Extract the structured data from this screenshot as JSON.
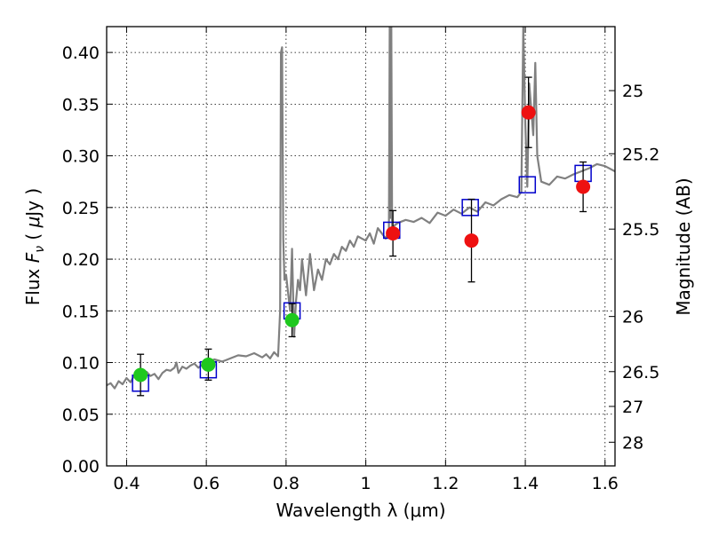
{
  "chart_data": {
    "type": "scatter",
    "xlabel": "Wavelength  λ (μm)",
    "ylabel": "Flux  F_ν  ( μJy )",
    "ylabel_parts": {
      "pre": "Flux  ",
      "sym": "F",
      "sub": "ν",
      "mid": "  ( ",
      "mu": "μ",
      "post": "Jy )"
    },
    "y2label": "Magnitude (AB)",
    "xlim": [
      0.35,
      1.625
    ],
    "ylim": [
      0.0,
      0.425
    ],
    "grid": true,
    "x_ticks": [
      0.4,
      0.6,
      0.8,
      1.0,
      1.2,
      1.4,
      1.6
    ],
    "x_tick_labels": [
      "0.4",
      "0.6",
      "0.8",
      "1",
      "1.2",
      "1.4",
      "1.6"
    ],
    "y_ticks": [
      0.0,
      0.05,
      0.1,
      0.15,
      0.2,
      0.25,
      0.3,
      0.35,
      0.4
    ],
    "y_tick_labels": [
      "0.00",
      "0.05",
      "0.10",
      "0.15",
      "0.20",
      "0.25",
      "0.30",
      "0.35",
      "0.40"
    ],
    "mag_ticks": [
      25,
      25.2,
      25.5,
      26,
      26.5,
      27,
      28
    ],
    "mag_tick_labels": [
      "25",
      "25.2",
      "25.5",
      "26",
      "26.5",
      "27",
      "28"
    ],
    "colors": {
      "spectrum": "#808080",
      "model": "#0000cc",
      "green": "#1ec81e",
      "red": "#ee1111",
      "errorbar": "#000000"
    },
    "series": [
      {
        "kind": "spectrum",
        "x": [
          0.35,
          0.36,
          0.37,
          0.38,
          0.39,
          0.4,
          0.41,
          0.42,
          0.43,
          0.44,
          0.45,
          0.46,
          0.47,
          0.48,
          0.49,
          0.5,
          0.51,
          0.52,
          0.525,
          0.53,
          0.54,
          0.55,
          0.56,
          0.57,
          0.58,
          0.59,
          0.6,
          0.62,
          0.64,
          0.66,
          0.68,
          0.7,
          0.72,
          0.74,
          0.75,
          0.76,
          0.77,
          0.78,
          0.785,
          0.787,
          0.79,
          0.793,
          0.796,
          0.8,
          0.81,
          0.815,
          0.82,
          0.825,
          0.83,
          0.835,
          0.84,
          0.85,
          0.86,
          0.87,
          0.88,
          0.89,
          0.9,
          0.91,
          0.92,
          0.93,
          0.94,
          0.95,
          0.96,
          0.97,
          0.98,
          0.99,
          1.0,
          1.01,
          1.02,
          1.03,
          1.04,
          1.05,
          1.058,
          1.06,
          1.062,
          1.064,
          1.066,
          1.07,
          1.08,
          1.1,
          1.12,
          1.14,
          1.16,
          1.18,
          1.2,
          1.22,
          1.24,
          1.26,
          1.28,
          1.3,
          1.32,
          1.34,
          1.36,
          1.38,
          1.39,
          1.395,
          1.4,
          1.405,
          1.41,
          1.42,
          1.425,
          1.43,
          1.44,
          1.46,
          1.48,
          1.5,
          1.52,
          1.54,
          1.56,
          1.58,
          1.6,
          1.625
        ],
        "y": [
          0.078,
          0.08,
          0.075,
          0.082,
          0.079,
          0.085,
          0.081,
          0.088,
          0.083,
          0.086,
          0.091,
          0.087,
          0.089,
          0.084,
          0.09,
          0.093,
          0.092,
          0.095,
          0.1,
          0.09,
          0.096,
          0.094,
          0.097,
          0.099,
          0.095,
          0.098,
          0.1,
          0.103,
          0.101,
          0.104,
          0.107,
          0.106,
          0.109,
          0.105,
          0.108,
          0.104,
          0.11,
          0.106,
          0.15,
          0.4,
          0.405,
          0.22,
          0.18,
          0.185,
          0.15,
          0.21,
          0.125,
          0.16,
          0.18,
          0.17,
          0.2,
          0.165,
          0.205,
          0.17,
          0.19,
          0.18,
          0.2,
          0.195,
          0.205,
          0.2,
          0.212,
          0.208,
          0.218,
          0.212,
          0.222,
          0.22,
          0.218,
          0.225,
          0.215,
          0.23,
          0.225,
          0.22,
          0.228,
          0.425,
          0.24,
          0.425,
          0.23,
          0.232,
          0.235,
          0.238,
          0.236,
          0.24,
          0.235,
          0.245,
          0.242,
          0.248,
          0.244,
          0.25,
          0.246,
          0.255,
          0.252,
          0.258,
          0.262,
          0.26,
          0.265,
          0.425,
          0.33,
          0.27,
          0.37,
          0.32,
          0.39,
          0.3,
          0.275,
          0.272,
          0.28,
          0.278,
          0.282,
          0.285,
          0.288,
          0.292,
          0.29,
          0.285
        ]
      },
      {
        "kind": "model",
        "marker": "square",
        "x": [
          0.435,
          0.605,
          0.815,
          1.065,
          1.262,
          1.405,
          1.545
        ],
        "values": [
          0.08,
          0.093,
          0.15,
          0.228,
          0.25,
          0.272,
          0.283
        ]
      },
      {
        "kind": "observed-green",
        "marker": "circle",
        "x": [
          0.435,
          0.605,
          0.815
        ],
        "values": [
          0.088,
          0.098,
          0.141
        ],
        "yerr": [
          0.02,
          0.015,
          0.016
        ]
      },
      {
        "kind": "observed-red",
        "marker": "circle",
        "x": [
          1.068,
          1.265,
          1.408,
          1.545
        ],
        "values": [
          0.225,
          0.218,
          0.342,
          0.27
        ],
        "yerr": [
          0.022,
          0.04,
          0.034,
          0.024
        ]
      }
    ]
  }
}
